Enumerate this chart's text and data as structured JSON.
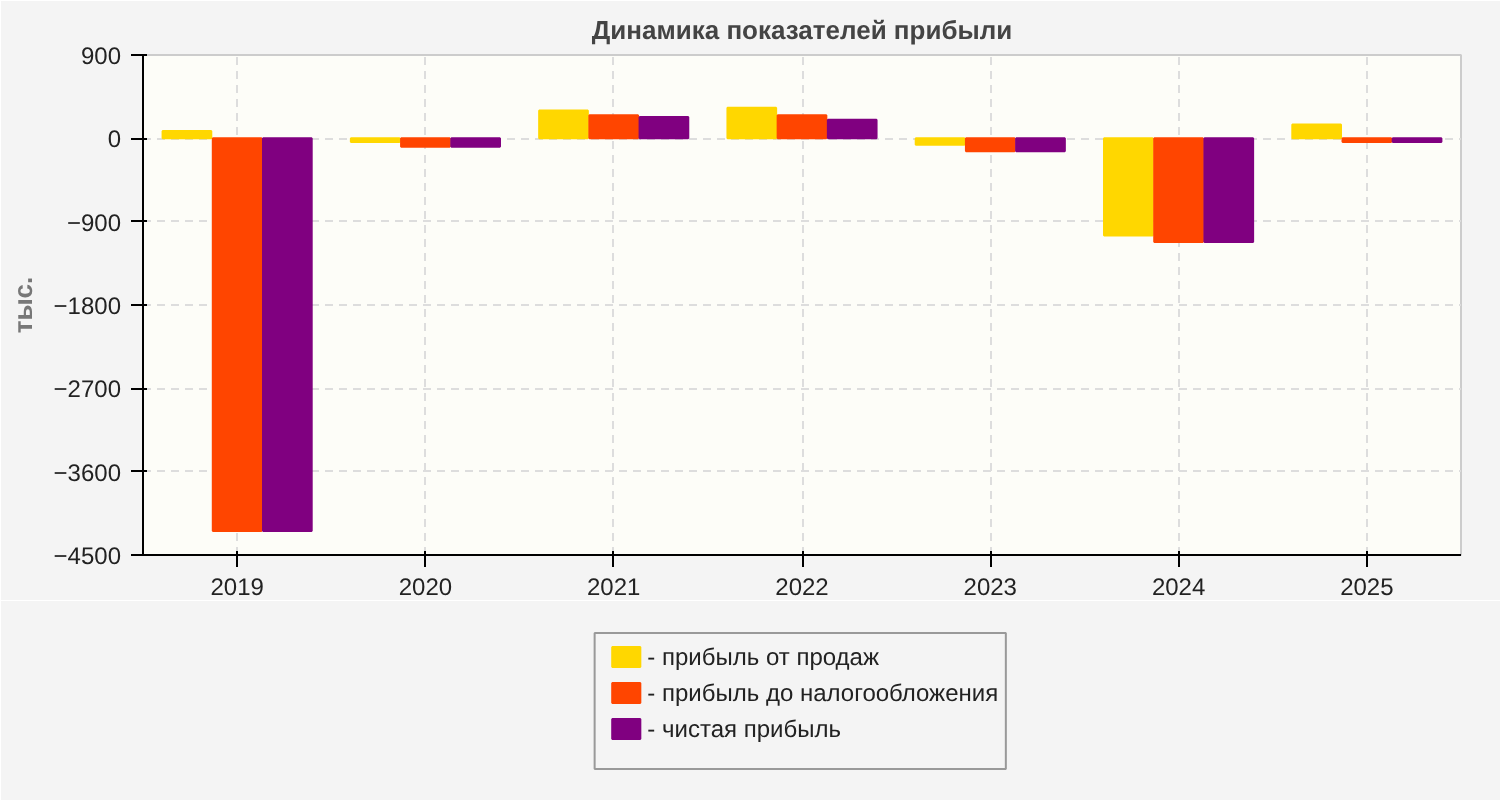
{
  "chart_data": {
    "type": "bar",
    "title": "Динамика показателей прибыли",
    "ylabel": "тыс.",
    "categories": [
      "2019",
      "2020",
      "2021",
      "2022",
      "2023",
      "2024",
      "2025"
    ],
    "series": [
      {
        "name": "- прибыль от продаж",
        "color": "#ffd700",
        "values": [
          80,
          -40,
          300,
          330,
          -70,
          -1050,
          150
        ]
      },
      {
        "name": "- прибыль до налогообложения",
        "color": "#ff4500",
        "values": [
          -4240,
          -90,
          250,
          250,
          -140,
          -1120,
          -40
        ]
      },
      {
        "name": "- чистая прибыль",
        "color": "#800080",
        "values": [
          -4240,
          -90,
          230,
          200,
          -140,
          -1120,
          -40
        ]
      }
    ],
    "ylim": [
      -4500,
      900
    ],
    "yticks": [
      -4500,
      -3600,
      -2700,
      -1800,
      -900,
      0,
      900
    ],
    "grid": true,
    "legend": "bottom"
  }
}
